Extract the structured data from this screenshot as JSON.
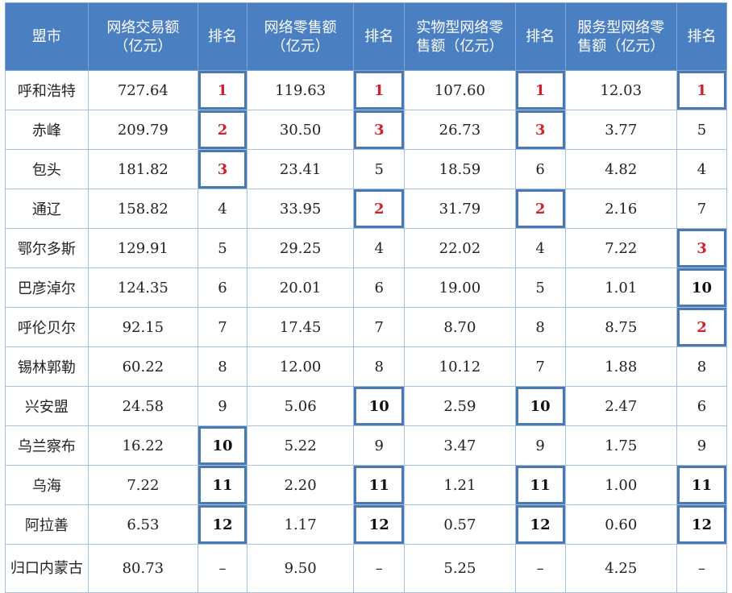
{
  "table": {
    "headers": {
      "city": "盟市",
      "total": "网络交易额（亿元）",
      "rank1": "排名",
      "retail": "网络零售额（亿元）",
      "rank2": "排名",
      "physical": "实物型网络零售额（亿元）",
      "rank3": "排名",
      "service": "服务型网络零售额（亿元）",
      "rank4": "排名"
    },
    "rows": [
      {
        "city": "呼和浩特",
        "total": "727.64",
        "r1": "1",
        "retail": "119.63",
        "r2": "1",
        "physical": "107.60",
        "r3": "1",
        "service": "12.03",
        "r4": "1"
      },
      {
        "city": "赤峰",
        "total": "209.79",
        "r1": "2",
        "retail": "30.50",
        "r2": "3",
        "physical": "26.73",
        "r3": "3",
        "service": "3.77",
        "r4": "5"
      },
      {
        "city": "包头",
        "total": "181.82",
        "r1": "3",
        "retail": "23.41",
        "r2": "5",
        "physical": "18.59",
        "r3": "6",
        "service": "4.82",
        "r4": "4"
      },
      {
        "city": "通辽",
        "total": "158.82",
        "r1": "4",
        "retail": "33.95",
        "r2": "2",
        "physical": "31.79",
        "r3": "2",
        "service": "2.16",
        "r4": "7"
      },
      {
        "city": "鄂尔多斯",
        "total": "129.91",
        "r1": "5",
        "retail": "29.25",
        "r2": "4",
        "physical": "22.02",
        "r3": "4",
        "service": "7.22",
        "r4": "3"
      },
      {
        "city": "巴彦淖尔",
        "total": "124.35",
        "r1": "6",
        "retail": "20.01",
        "r2": "6",
        "physical": "19.00",
        "r3": "5",
        "service": "1.01",
        "r4": "10"
      },
      {
        "city": "呼伦贝尔",
        "total": "92.15",
        "r1": "7",
        "retail": "17.45",
        "r2": "7",
        "physical": "8.70",
        "r3": "8",
        "service": "8.75",
        "r4": "2"
      },
      {
        "city": "锡林郭勒",
        "total": "60.22",
        "r1": "8",
        "retail": "12.00",
        "r2": "8",
        "physical": "10.12",
        "r3": "7",
        "service": "1.88",
        "r4": "8"
      },
      {
        "city": "兴安盟",
        "total": "24.58",
        "r1": "9",
        "retail": "5.06",
        "r2": "10",
        "physical": "2.59",
        "r3": "10",
        "service": "2.47",
        "r4": "6"
      },
      {
        "city": "乌兰察布",
        "total": "16.22",
        "r1": "10",
        "retail": "5.22",
        "r2": "9",
        "physical": "3.47",
        "r3": "9",
        "service": "1.75",
        "r4": "9"
      },
      {
        "city": "乌海",
        "total": "7.22",
        "r1": "11",
        "retail": "2.20",
        "r2": "11",
        "physical": "1.21",
        "r3": "11",
        "service": "1.00",
        "r4": "11"
      },
      {
        "city": "阿拉善",
        "total": "6.53",
        "r1": "12",
        "retail": "1.17",
        "r2": "12",
        "physical": "0.57",
        "r3": "12",
        "service": "0.60",
        "r4": "12"
      },
      {
        "city": "归口内蒙古",
        "total": "80.73",
        "r1": "–",
        "retail": "9.50",
        "r2": "–",
        "physical": "5.25",
        "r3": "–",
        "service": "4.25",
        "r4": "–"
      }
    ]
  },
  "colors": {
    "header_bg": "#4a7fc1",
    "top_rank_text": "#d0202a",
    "highlight_border": "#4a78b0"
  }
}
